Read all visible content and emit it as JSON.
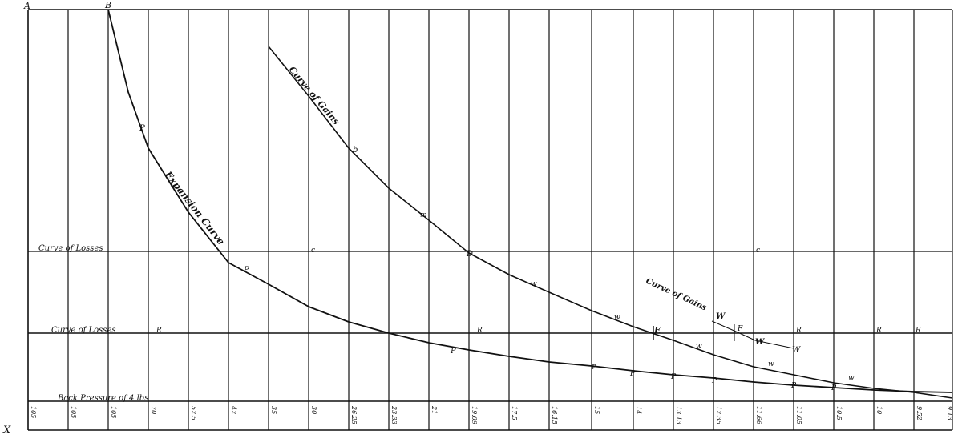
{
  "corner_labels": {
    "top_left": "A",
    "cutoff_point": "B",
    "bottom_left": "X"
  },
  "curve_labels": {
    "expansion": "Expansion Curve",
    "gains_main": "Curve of Gains",
    "gains_secondary": "Curve of Gains",
    "losses_upper": "Curve of Losses",
    "losses_lower": "Curve of Losses",
    "back_pressure": "Back Pressure of 4 lbs"
  },
  "point_marks": {
    "expansion": [
      "P",
      "P",
      "P",
      "P",
      "P",
      "P",
      "P",
      "P",
      "P"
    ],
    "gains": [
      "b",
      "m",
      "D",
      "w",
      "w",
      "E",
      "w",
      "w",
      "w"
    ],
    "gains_secondary": [
      "W",
      "F",
      "W",
      "W"
    ],
    "losses_upper": [
      "c",
      "c"
    ],
    "losses_lower": [
      "R",
      "R",
      "R",
      "R",
      "R"
    ]
  },
  "pressure_labels": [
    "105",
    "105",
    "105",
    "70",
    "52.5",
    "42",
    "35",
    "30",
    "26.25",
    "23.33",
    "21",
    "19.09",
    "17.5",
    "16.15",
    "15",
    "14",
    "13.13",
    "12.35",
    "11.66",
    "11.05",
    "10.5",
    "10",
    "9.52",
    "9.13"
  ],
  "colors": {
    "ink": "#111111",
    "paper": "#ffffff"
  }
}
